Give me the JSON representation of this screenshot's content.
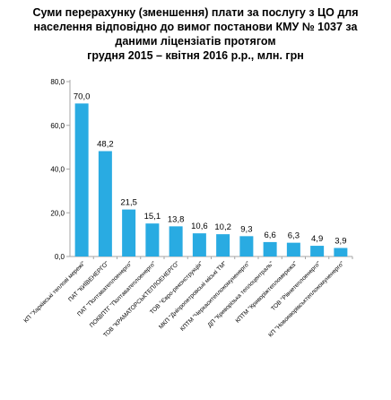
{
  "chart_data": {
    "type": "bar",
    "title_lines": [
      "Суми перерахунку (зменшення) плати за послугу з ЦО для",
      "населення відповідно до вимог постанови КМУ № 1037 за",
      "даними ліцензіатів протягом",
      "грудня 2015 – квітня 2016 р.р., млн. грн"
    ],
    "categories": [
      "КП \"Харківські теплові мережі\"",
      "ПАТ \"КИЇВЕНЕРГО\"",
      "ПАТ \"Полтаватеплоенерго\"",
      "ПОКВПТГ \"Полтаватеплоенерго\"",
      "ТОВ \"КРАМАТОРСЬКТЕПЛОЕНЕРГО\"",
      "ТОВ \"Євро-реконструкція\"",
      "МКП \"Дніпропетровські міські ТМ\"",
      "КПТМ \"Черкаситеплокомуненерго\"",
      "ДП \"Криворізька теплоцентраль\"",
      "КПТМ \"Криворіжтепломережа\"",
      "ТОВ \"Рівнетеплоенерго\"",
      "КП \"Новояворівськтеплокомуненерго\""
    ],
    "values": [
      70.0,
      48.2,
      21.5,
      15.1,
      13.8,
      10.6,
      10.2,
      9.3,
      6.6,
      6.3,
      4.9,
      3.9
    ],
    "value_labels": [
      "70,0",
      "48,2",
      "21,5",
      "15,1",
      "13,8",
      "10,6",
      "10,2",
      "9,3",
      "6,6",
      "6,3",
      "4,9",
      "3,9"
    ],
    "y_ticks": [
      0,
      20,
      40,
      60,
      80
    ],
    "y_tick_labels": [
      "0,0",
      "20,0",
      "40,0",
      "60,0",
      "80,0"
    ],
    "ylim": [
      0,
      80
    ],
    "grid": false,
    "legend": "none",
    "colors": {
      "bar": "#29abe2",
      "axis": "#a6a6a6",
      "text": "#000000"
    }
  }
}
